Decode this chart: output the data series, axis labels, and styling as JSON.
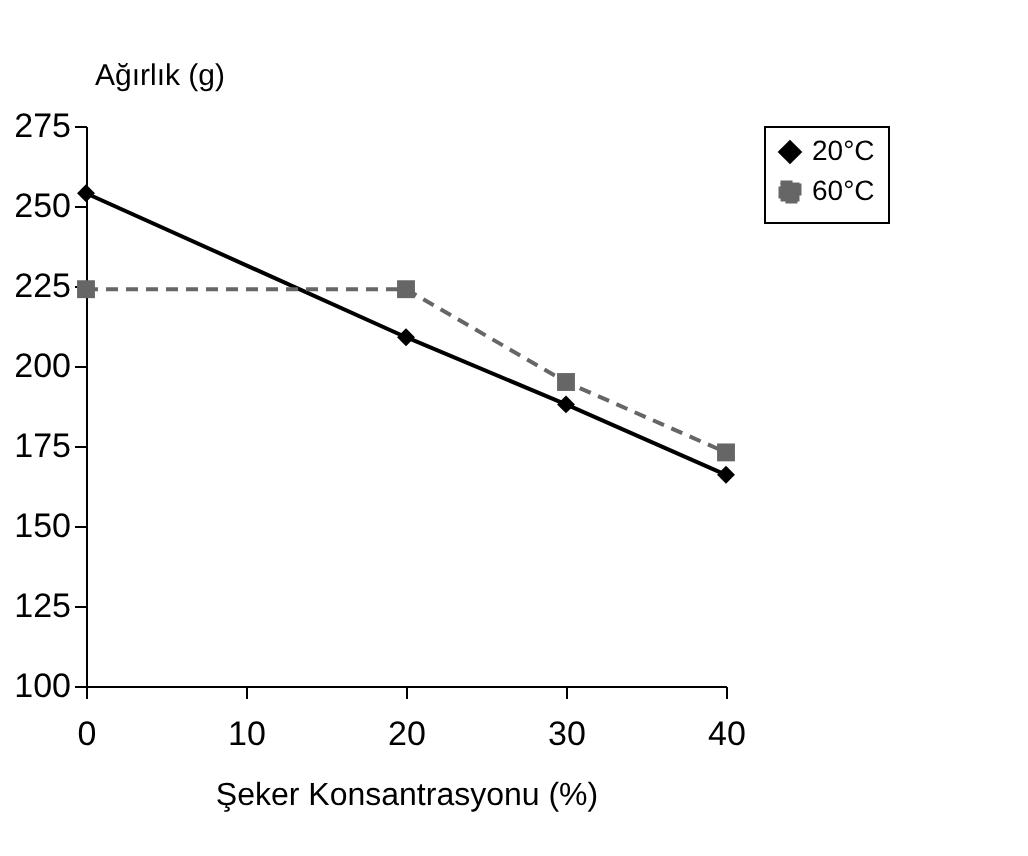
{
  "chart_data": {
    "type": "line",
    "xlabel": "Şeker Konsantrasyonu (%)",
    "ylabel": "Ağırlık (g)",
    "x": [
      0,
      20,
      30,
      40
    ],
    "series": [
      {
        "name": "20°C",
        "color": "#000000",
        "values": [
          254,
          209,
          188,
          166
        ],
        "marker": "diamond",
        "line_style": "solid"
      },
      {
        "name": "60°C",
        "color": "#666666",
        "values": [
          224,
          224,
          195,
          173
        ],
        "marker": "square",
        "line_style": "dashed"
      }
    ],
    "xlim": [
      0,
      40
    ],
    "xticks": [
      0,
      10,
      20,
      30,
      40
    ],
    "ylim": [
      100,
      275
    ],
    "yticks": [
      100,
      125,
      150,
      175,
      200,
      225,
      250,
      275
    ],
    "grid": false,
    "legend": "right"
  }
}
